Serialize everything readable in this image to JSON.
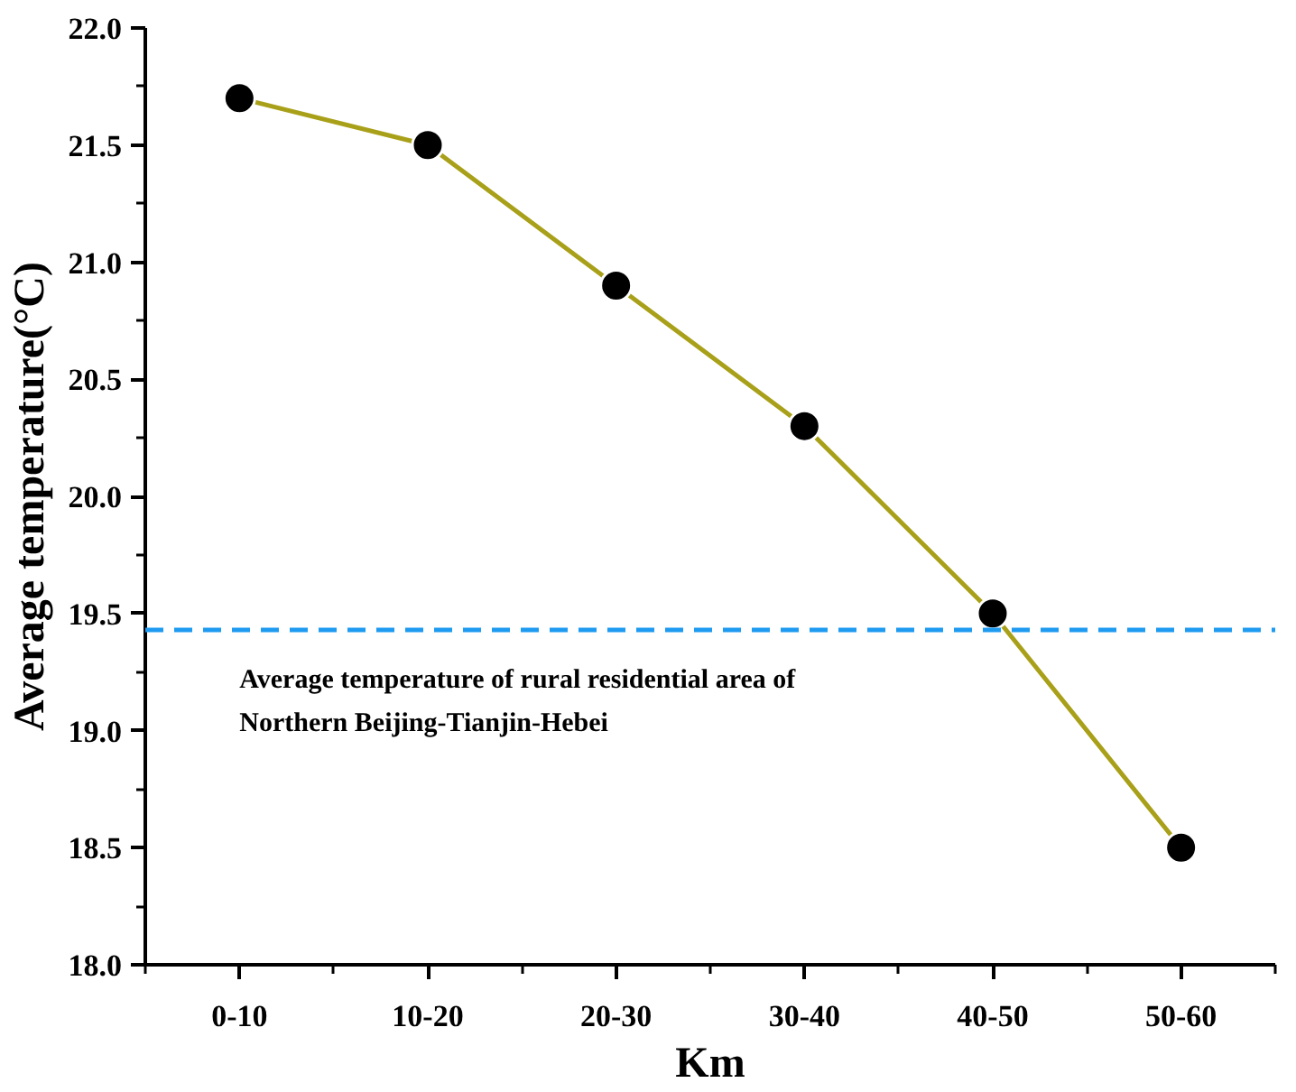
{
  "chart_data": {
    "type": "line",
    "xlabel": "Km",
    "ylabel": "Average temperature(°C)",
    "categories": [
      "0-10",
      "10-20",
      "20-30",
      "30-40",
      "40-50",
      "50-60"
    ],
    "series": [
      {
        "color": "#a9a01a",
        "values": [
          21.7,
          21.5,
          20.9,
          20.3,
          19.5,
          18.5
        ]
      }
    ],
    "marker": "circle",
    "line_style": "solid",
    "ylim": [
      18.0,
      22.0
    ],
    "yticks": [
      {
        "value": 18.0,
        "label": "18.0"
      },
      {
        "value": 18.5,
        "label": "18.5"
      },
      {
        "value": 19.0,
        "label": "19.0"
      },
      {
        "value": 19.5,
        "label": "19.5"
      },
      {
        "value": 20.0,
        "label": "20.0"
      },
      {
        "value": 20.5,
        "label": "20.5"
      },
      {
        "value": 21.0,
        "label": "21.0"
      },
      {
        "value": 21.5,
        "label": "21.5"
      },
      {
        "value": 22.0,
        "label": "22.0"
      }
    ],
    "ref_lines": [
      {
        "axis": "y",
        "value": 19.43,
        "color": "#1e9bf0",
        "line_style": "dashed",
        "label": "Average temperature of rural residential area of\nNorthern Beijing-Tianjin-Hebei"
      }
    ],
    "grid": false
  }
}
